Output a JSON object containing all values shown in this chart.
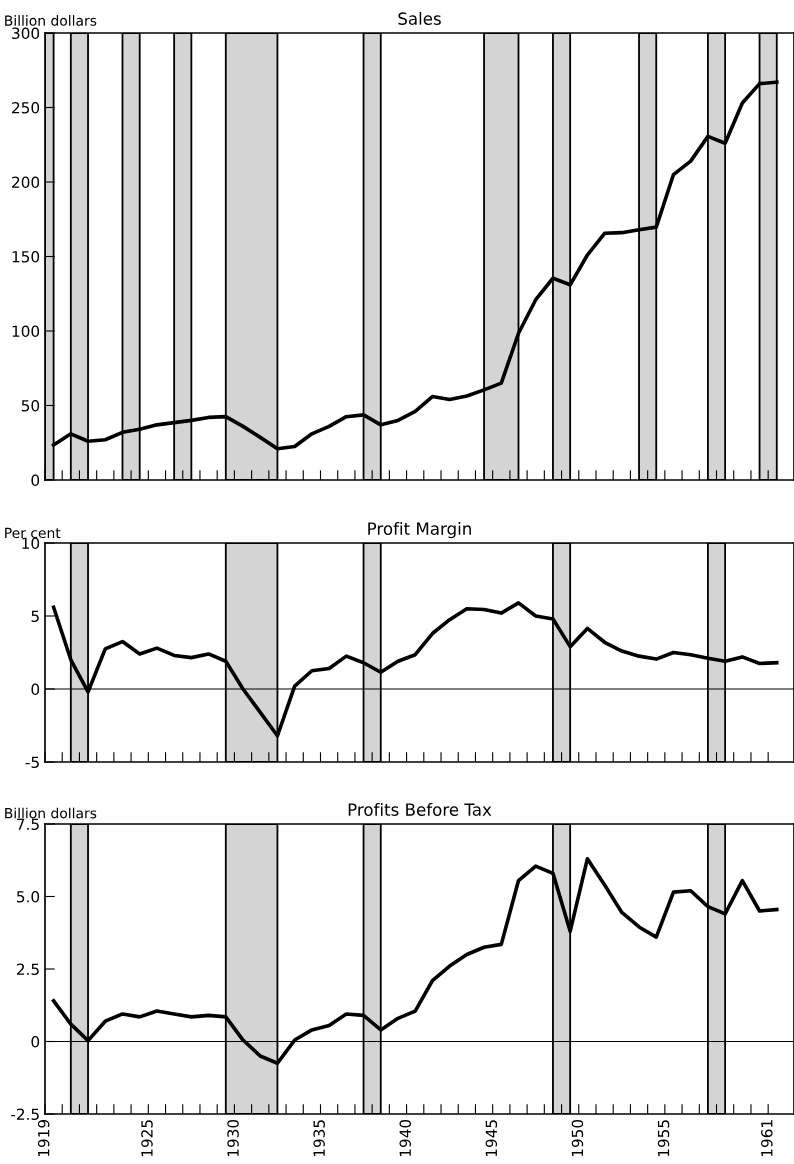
{
  "chart_data": [
    {
      "type": "line",
      "title": "Sales",
      "ylabel": "Billion dollars",
      "tick_labels": "y",
      "x": [
        1919.5,
        1920.5,
        1921.5,
        1922.5,
        1923.5,
        1924.5,
        1925.5,
        1926.5,
        1927.5,
        1928.5,
        1929.5,
        1930.5,
        1931.5,
        1932.5,
        1933.5,
        1934.5,
        1935.5,
        1936.5,
        1937.5,
        1938.5,
        1939.5,
        1940.5,
        1941.5,
        1942.5,
        1943.5,
        1944.5,
        1945.5,
        1946.5,
        1947.5,
        1948.5,
        1949.5,
        1950.5,
        1951.5,
        1952.5,
        1953.5,
        1954.5,
        1955.5,
        1956.5,
        1957.5,
        1958.5,
        1959.5,
        1960.5,
        1961.5
      ],
      "series": [
        {
          "color": "#000000",
          "values": [
            23.5,
            31,
            26,
            27,
            32,
            34,
            37,
            38.5,
            40,
            42,
            42.5,
            36,
            28.6,
            21,
            22.5,
            31,
            36,
            42.5,
            43.7,
            37,
            40,
            46,
            56,
            54,
            56.4,
            60.5,
            65,
            98.5,
            121,
            135.4,
            131,
            151,
            165.6,
            166,
            168,
            169.7,
            205,
            214,
            230.6,
            226,
            253,
            266,
            267
          ]
        }
      ],
      "xlim": [
        1919,
        1962.5
      ],
      "ylim": [
        0,
        300
      ],
      "yticks": [
        0,
        50,
        100,
        150,
        200,
        250,
        300
      ],
      "xticks": [
        1919,
        {
          "value": 1920,
          "label": null
        },
        {
          "value": 1921,
          "label": null
        },
        {
          "value": 1922,
          "label": null
        },
        {
          "value": 1923,
          "label": null
        },
        {
          "value": 1924,
          "label": null
        },
        1925,
        {
          "value": 1926,
          "label": null
        },
        {
          "value": 1927,
          "label": null
        },
        {
          "value": 1928,
          "label": null
        },
        {
          "value": 1929,
          "label": null
        },
        1930,
        {
          "value": 1931,
          "label": null
        },
        {
          "value": 1932,
          "label": null
        },
        {
          "value": 1933,
          "label": null
        },
        {
          "value": 1934,
          "label": null
        },
        1935,
        {
          "value": 1936,
          "label": null
        },
        {
          "value": 1937,
          "label": null
        },
        {
          "value": 1938,
          "label": null
        },
        {
          "value": 1939,
          "label": null
        },
        1940,
        {
          "value": 1941,
          "label": null
        },
        {
          "value": 1942,
          "label": null
        },
        {
          "value": 1943,
          "label": null
        },
        {
          "value": 1944,
          "label": null
        },
        1945,
        {
          "value": 1946,
          "label": null
        },
        {
          "value": 1947,
          "label": null
        },
        {
          "value": 1948,
          "label": null
        },
        {
          "value": 1949,
          "label": null
        },
        1950,
        {
          "value": 1951,
          "label": null
        },
        {
          "value": 1952,
          "label": null
        },
        {
          "value": 1953,
          "label": null
        },
        {
          "value": 1954,
          "label": null
        },
        1955,
        {
          "value": 1956,
          "label": null
        },
        {
          "value": 1957,
          "label": null
        },
        {
          "value": 1958,
          "label": null
        },
        {
          "value": 1959,
          "label": null
        },
        {
          "value": 1960,
          "label": null
        },
        1961
      ],
      "bands": [
        {
          "axis": "x",
          "from": 1919,
          "to": 1919.5,
          "color": "#d4d4d4"
        },
        {
          "axis": "x",
          "from": 1920.5,
          "to": 1921.5,
          "color": "#d4d4d4"
        },
        {
          "axis": "x",
          "from": 1923.5,
          "to": 1924.5,
          "color": "#d4d4d4"
        },
        {
          "axis": "x",
          "from": 1926.5,
          "to": 1927.5,
          "color": "#d4d4d4"
        },
        {
          "axis": "x",
          "from": 1929.5,
          "to": 1932.5,
          "color": "#d4d4d4"
        },
        {
          "axis": "x",
          "from": 1937.5,
          "to": 1938.5,
          "color": "#d4d4d4"
        },
        {
          "axis": "x",
          "from": 1944.5,
          "to": 1946.5,
          "color": "#d4d4d4"
        },
        {
          "axis": "x",
          "from": 1948.5,
          "to": 1949.5,
          "color": "#d4d4d4"
        },
        {
          "axis": "x",
          "from": 1953.5,
          "to": 1954.5,
          "color": "#d4d4d4"
        },
        {
          "axis": "x",
          "from": 1957.5,
          "to": 1958.5,
          "color": "#d4d4d4"
        },
        {
          "axis": "x",
          "from": 1960.5,
          "to": 1961.5,
          "color": "#d4d4d4"
        }
      ]
    },
    {
      "type": "line",
      "title": "Profit Margin",
      "ylabel": "Per cent",
      "tick_labels": "y",
      "x": [
        1919.5,
        1920.5,
        1921.5,
        1922.5,
        1923.5,
        1924.5,
        1925.5,
        1926.5,
        1927.5,
        1928.5,
        1929.5,
        1930.5,
        1931.5,
        1932.5,
        1933.5,
        1934.5,
        1935.5,
        1936.5,
        1937.5,
        1938.5,
        1939.5,
        1940.5,
        1941.5,
        1942.5,
        1943.5,
        1944.5,
        1945.5,
        1946.5,
        1947.5,
        1948.5,
        1949.5,
        1950.5,
        1951.5,
        1952.5,
        1953.5,
        1954.5,
        1955.5,
        1956.5,
        1957.5,
        1958.5,
        1959.5,
        1960.5,
        1961.5
      ],
      "series": [
        {
          "color": "#000000",
          "values": [
            5.6,
            2.0,
            -0.2,
            2.75,
            3.25,
            2.4,
            2.8,
            2.3,
            2.15,
            2.4,
            1.9,
            0,
            -1.6,
            -3.2,
            0.2,
            1.25,
            1.4,
            2.25,
            1.8,
            1.15,
            1.9,
            2.35,
            3.8,
            4.75,
            5.5,
            5.45,
            5.2,
            5.9,
            5.0,
            4.8,
            2.9,
            4.15,
            3.2,
            2.6,
            2.25,
            2.05,
            2.5,
            2.35,
            2.1,
            1.9,
            2.2,
            1.75,
            1.8
          ]
        }
      ],
      "xlim": [
        1919,
        1962.5
      ],
      "ylim": [
        -5,
        10
      ],
      "yticks": [
        -5,
        0,
        5,
        10
      ],
      "xticks": [
        1919,
        {
          "value": 1920,
          "label": null
        },
        {
          "value": 1921,
          "label": null
        },
        {
          "value": 1922,
          "label": null
        },
        {
          "value": 1923,
          "label": null
        },
        {
          "value": 1924,
          "label": null
        },
        1925,
        {
          "value": 1926,
          "label": null
        },
        {
          "value": 1927,
          "label": null
        },
        {
          "value": 1928,
          "label": null
        },
        {
          "value": 1929,
          "label": null
        },
        1930,
        {
          "value": 1931,
          "label": null
        },
        {
          "value": 1932,
          "label": null
        },
        {
          "value": 1933,
          "label": null
        },
        {
          "value": 1934,
          "label": null
        },
        1935,
        {
          "value": 1936,
          "label": null
        },
        {
          "value": 1937,
          "label": null
        },
        {
          "value": 1938,
          "label": null
        },
        {
          "value": 1939,
          "label": null
        },
        1940,
        {
          "value": 1941,
          "label": null
        },
        {
          "value": 1942,
          "label": null
        },
        {
          "value": 1943,
          "label": null
        },
        {
          "value": 1944,
          "label": null
        },
        1945,
        {
          "value": 1946,
          "label": null
        },
        {
          "value": 1947,
          "label": null
        },
        {
          "value": 1948,
          "label": null
        },
        {
          "value": 1949,
          "label": null
        },
        1950,
        {
          "value": 1951,
          "label": null
        },
        {
          "value": 1952,
          "label": null
        },
        {
          "value": 1953,
          "label": null
        },
        {
          "value": 1954,
          "label": null
        },
        1955,
        {
          "value": 1956,
          "label": null
        },
        {
          "value": 1957,
          "label": null
        },
        {
          "value": 1958,
          "label": null
        },
        {
          "value": 1959,
          "label": null
        },
        {
          "value": 1960,
          "label": null
        },
        1961
      ],
      "ref_lines": [
        {
          "axis": "y",
          "value": 0,
          "color": "#000000"
        }
      ],
      "bands": [
        {
          "axis": "x",
          "from": 1920.5,
          "to": 1921.5,
          "color": "#d4d4d4"
        },
        {
          "axis": "x",
          "from": 1929.5,
          "to": 1932.5,
          "color": "#d4d4d4"
        },
        {
          "axis": "x",
          "from": 1937.5,
          "to": 1938.5,
          "color": "#d4d4d4"
        },
        {
          "axis": "x",
          "from": 1948.5,
          "to": 1949.5,
          "color": "#d4d4d4"
        },
        {
          "axis": "x",
          "from": 1957.5,
          "to": 1958.5,
          "color": "#d4d4d4"
        }
      ]
    },
    {
      "type": "line",
      "title": "Profits Before Tax",
      "ylabel": "Billion dollars",
      "x": [
        1919.5,
        1920.5,
        1921.5,
        1922.5,
        1923.5,
        1924.5,
        1925.5,
        1926.5,
        1927.5,
        1928.5,
        1929.5,
        1930.5,
        1931.5,
        1932.5,
        1933.5,
        1934.5,
        1935.5,
        1936.5,
        1937.5,
        1938.5,
        1939.5,
        1940.5,
        1941.5,
        1942.5,
        1943.5,
        1944.5,
        1945.5,
        1946.5,
        1947.5,
        1948.5,
        1949.5,
        1950.5,
        1951.5,
        1952.5,
        1953.5,
        1954.5,
        1955.5,
        1956.5,
        1957.5,
        1958.5,
        1959.5,
        1960.5,
        1961.5
      ],
      "series": [
        {
          "color": "#000000",
          "values": [
            1.4,
            0.6,
            0.03,
            0.7,
            0.95,
            0.85,
            1.05,
            0.95,
            0.85,
            0.9,
            0.85,
            0.05,
            -0.5,
            -0.75,
            0.05,
            0.4,
            0.55,
            0.95,
            0.9,
            0.4,
            0.8,
            1.05,
            2.1,
            2.6,
            3.0,
            3.25,
            3.35,
            5.55,
            6.05,
            5.8,
            3.8,
            6.3,
            5.4,
            4.45,
            3.95,
            3.6,
            5.15,
            5.2,
            4.65,
            4.4,
            5.55,
            4.5,
            4.55
          ]
        }
      ],
      "xlim": [
        1919,
        1962.5
      ],
      "ylim": [
        -2.5,
        7.5
      ],
      "yticks": [
        {
          "value": -2.5,
          "label": "-2.5"
        },
        {
          "value": 0,
          "label": "0"
        },
        {
          "value": 2.5,
          "label": "2.5"
        },
        {
          "value": 5,
          "label": "5.0"
        },
        {
          "value": 7.5,
          "label": "7.5"
        }
      ],
      "xticks": [
        1919,
        {
          "value": 1920,
          "label": null
        },
        {
          "value": 1921,
          "label": null
        },
        {
          "value": 1922,
          "label": null
        },
        {
          "value": 1923,
          "label": null
        },
        {
          "value": 1924,
          "label": null
        },
        1925,
        {
          "value": 1926,
          "label": null
        },
        {
          "value": 1927,
          "label": null
        },
        {
          "value": 1928,
          "label": null
        },
        {
          "value": 1929,
          "label": null
        },
        1930,
        {
          "value": 1931,
          "label": null
        },
        {
          "value": 1932,
          "label": null
        },
        {
          "value": 1933,
          "label": null
        },
        {
          "value": 1934,
          "label": null
        },
        1935,
        {
          "value": 1936,
          "label": null
        },
        {
          "value": 1937,
          "label": null
        },
        {
          "value": 1938,
          "label": null
        },
        {
          "value": 1939,
          "label": null
        },
        1940,
        {
          "value": 1941,
          "label": null
        },
        {
          "value": 1942,
          "label": null
        },
        {
          "value": 1943,
          "label": null
        },
        {
          "value": 1944,
          "label": null
        },
        1945,
        {
          "value": 1946,
          "label": null
        },
        {
          "value": 1947,
          "label": null
        },
        {
          "value": 1948,
          "label": null
        },
        {
          "value": 1949,
          "label": null
        },
        1950,
        {
          "value": 1951,
          "label": null
        },
        {
          "value": 1952,
          "label": null
        },
        {
          "value": 1953,
          "label": null
        },
        {
          "value": 1954,
          "label": null
        },
        1955,
        {
          "value": 1956,
          "label": null
        },
        {
          "value": 1957,
          "label": null
        },
        {
          "value": 1958,
          "label": null
        },
        {
          "value": 1959,
          "label": null
        },
        {
          "value": 1960,
          "label": null
        },
        1961
      ],
      "ref_lines": [
        {
          "axis": "y",
          "value": 0,
          "color": "#000000"
        }
      ],
      "bands": [
        {
          "axis": "x",
          "from": 1920.5,
          "to": 1921.5,
          "color": "#d4d4d4"
        },
        {
          "axis": "x",
          "from": 1929.5,
          "to": 1932.5,
          "color": "#d4d4d4"
        },
        {
          "axis": "x",
          "from": 1937.5,
          "to": 1938.5,
          "color": "#d4d4d4"
        },
        {
          "axis": "x",
          "from": 1948.5,
          "to": 1949.5,
          "color": "#d4d4d4"
        },
        {
          "axis": "x",
          "from": 1957.5,
          "to": 1958.5,
          "color": "#d4d4d4"
        }
      ]
    }
  ]
}
